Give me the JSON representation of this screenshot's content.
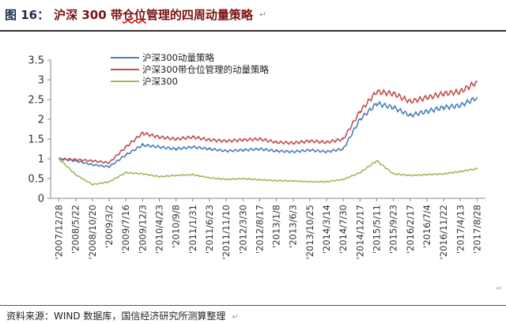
{
  "header": {
    "label": "图 16：",
    "title_pre": "沪深 300 带",
    "title_wavy": "仓位",
    "title_post": "管理的四周动量策略",
    "para_mark": "↵"
  },
  "footer": {
    "source": "资料来源：WIND 数据库，国信经济研究所测算整理",
    "para_mark": "↵"
  },
  "colors": {
    "momentum": "#4a7ebb",
    "position_mgmt": "#c0504d",
    "index": "#9bbb59"
  },
  "chart_data": {
    "type": "line",
    "title": "",
    "xlabel": "",
    "ylabel": "",
    "ylim": [
      0,
      3.5
    ],
    "yticks": [
      "0",
      "0.5",
      "1",
      "1.5",
      "2",
      "2.5",
      "3",
      "3.5"
    ],
    "grid": false,
    "legend_position": "top-left",
    "categories": [
      "'2007/12/28",
      "'2008/5/22",
      "'2008/10/20",
      "'2009/3/2",
      "'2009/7/16",
      "'2009/12/3",
      "'2010/4/23",
      "'2010/9/8",
      "'2011/1/31",
      "'2011/6/23",
      "'2011/11/10",
      "'2012/3/30",
      "'2012/8/17",
      "'2013/1/8",
      "'2013/6/3",
      "'2013/10/25",
      "'2014/3/14",
      "'2014/7/30",
      "'2014/12/17",
      "'2015/5/11",
      "'2015/9/23",
      "'2016/2/17",
      "'2016/7/4",
      "'2016/11/22",
      "'2017/4/13",
      "'2017/8/28"
    ],
    "series": [
      {
        "name": "沪深300动量策略",
        "values": [
          1.0,
          0.95,
          0.85,
          0.8,
          1.1,
          1.35,
          1.3,
          1.25,
          1.3,
          1.25,
          1.2,
          1.22,
          1.25,
          1.2,
          1.18,
          1.22,
          1.18,
          1.25,
          2.0,
          2.4,
          2.3,
          2.1,
          2.2,
          2.3,
          2.35,
          2.55
        ]
      },
      {
        "name": "沪深300带仓位管理的动量策略",
        "values": [
          1.0,
          0.98,
          0.95,
          0.9,
          1.3,
          1.65,
          1.55,
          1.5,
          1.55,
          1.48,
          1.45,
          1.48,
          1.5,
          1.42,
          1.4,
          1.45,
          1.42,
          1.5,
          2.2,
          2.7,
          2.65,
          2.45,
          2.55,
          2.65,
          2.7,
          2.95
        ]
      },
      {
        "name": "沪深300",
        "values": [
          1.0,
          0.6,
          0.35,
          0.42,
          0.65,
          0.62,
          0.55,
          0.58,
          0.6,
          0.52,
          0.48,
          0.5,
          0.47,
          0.45,
          0.44,
          0.42,
          0.42,
          0.48,
          0.65,
          0.95,
          0.62,
          0.58,
          0.6,
          0.62,
          0.68,
          0.75
        ]
      }
    ]
  }
}
